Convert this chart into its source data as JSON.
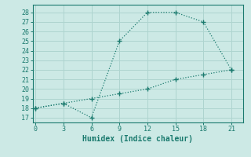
{
  "x": [
    0,
    3,
    6,
    9,
    12,
    15,
    18,
    21
  ],
  "line1_y": [
    18,
    18.5,
    17,
    25,
    28,
    28,
    27,
    22
  ],
  "line2_y": [
    18,
    18.5,
    19,
    19.5,
    20,
    21,
    21.5,
    22
  ],
  "line_color": "#1a7a6e",
  "bg_color": "#cce9e5",
  "grid_color": "#aed4cf",
  "xlabel": "Humidex (Indice chaleur)",
  "yticks": [
    17,
    18,
    19,
    20,
    21,
    22,
    23,
    24,
    25,
    26,
    27,
    28
  ],
  "xticks": [
    0,
    3,
    6,
    9,
    12,
    15,
    18,
    21
  ],
  "ylim": [
    16.5,
    28.8
  ],
  "xlim": [
    -0.3,
    22.3
  ]
}
